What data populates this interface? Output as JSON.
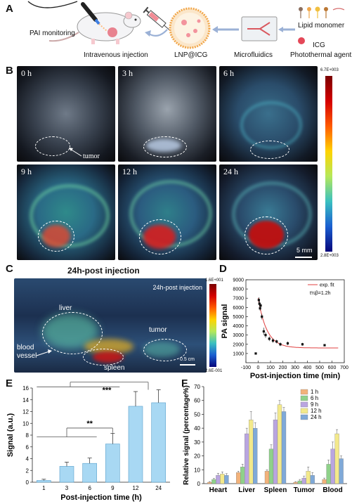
{
  "panel_labels": {
    "a": "A",
    "b": "B",
    "c": "C",
    "d": "D",
    "e": "E",
    "f": "F"
  },
  "schematic": {
    "pai_monitoring": "PAI monitoring",
    "intravenous_injection": "Intravenous injection",
    "lnp_icg": "LNP@ICG",
    "microfluidics": "Microfluidics",
    "lipid_monomer": "Lipid monomer",
    "icg": "ICG",
    "photothermal_agent": "Photothermal agent"
  },
  "panel_b": {
    "times": [
      "0 h",
      "3 h",
      "6 h",
      "9 h",
      "12 h",
      "24 h"
    ],
    "tumor_label": "tumor",
    "scale_bar": "5 mm",
    "colorbar_max": "6.7E+003",
    "colorbar_min": "2.8E+003"
  },
  "panel_c": {
    "title": "24h-post injection",
    "inner_title": "24h-post injection",
    "labels": {
      "liver": "liver",
      "tumor": "tumor",
      "blood_vessel_1": "blood",
      "blood_vessel_2": "vessel",
      "spleen": "spleen"
    },
    "scale_bar": "0.5 cm",
    "colorbar_max": "1.6E+001",
    "colorbar_min": "2.6E-001"
  },
  "chart_data": [
    {
      "type": "scatter",
      "panel": "D",
      "xlabel": "Post-injection time (min)",
      "ylabel": "PA signal",
      "xlim": [
        -100,
        700
      ],
      "ylim": [
        0,
        9000
      ],
      "xticks": [
        -100,
        0,
        100,
        200,
        300,
        400,
        500,
        600,
        700
      ],
      "yticks": [
        1000,
        2000,
        3000,
        4000,
        5000,
        6000,
        7000,
        8000,
        9000
      ],
      "legend": {
        "fit_label": "exp. fit",
        "half_life": "t½β=1.2h"
      },
      "points": [
        {
          "x": 5,
          "y": 6800,
          "err": 300
        },
        {
          "x": 10,
          "y": 6400,
          "err": 300
        },
        {
          "x": 15,
          "y": 5900,
          "err": 250
        },
        {
          "x": 20,
          "y": 6200,
          "err": 250
        },
        {
          "x": 30,
          "y": 5000,
          "err": 300
        },
        {
          "x": 45,
          "y": 3400,
          "err": 400
        },
        {
          "x": 60,
          "y": 3000,
          "err": 300
        },
        {
          "x": 90,
          "y": 2600,
          "err": 250
        },
        {
          "x": 120,
          "y": 2400,
          "err": 250
        },
        {
          "x": 150,
          "y": 2300,
          "err": 200
        },
        {
          "x": 180,
          "y": 2000,
          "err": 200
        },
        {
          "x": 240,
          "y": 2100,
          "err": 200
        },
        {
          "x": 360,
          "y": 2000,
          "err": 150
        },
        {
          "x": 540,
          "y": 1900,
          "err": 100
        },
        {
          "x": -20,
          "y": 1000,
          "err": 0
        }
      ],
      "fit": {
        "y0": 1600,
        "a": 5400,
        "tau_min": 70
      }
    },
    {
      "type": "bar",
      "panel": "E",
      "xlabel": "Post-injection time (h)",
      "ylabel": "Signal (a.u.)",
      "categories": [
        "1",
        "3",
        "6",
        "9",
        "12",
        "24"
      ],
      "values": [
        0.3,
        2.7,
        3.2,
        6.5,
        12.9,
        13.5
      ],
      "errors": [
        0.2,
        0.7,
        0.9,
        1.8,
        2.5,
        2.2
      ],
      "ylim": [
        0,
        16
      ],
      "yticks": [
        0,
        2,
        4,
        6,
        8,
        10,
        12,
        14,
        16
      ],
      "annotations": {
        "low": "**",
        "high": "***"
      }
    },
    {
      "type": "bar",
      "panel": "F",
      "ylabel": "Relative signal (percentage%)",
      "categories": [
        "Heart",
        "Liver",
        "Spleen",
        "Tumor",
        "Blood"
      ],
      "ylim": [
        0,
        70
      ],
      "yticks": [
        0,
        10,
        20,
        30,
        40,
        50,
        60,
        70
      ],
      "series": [
        {
          "name": "1 h",
          "color": "#f2b27a",
          "values": [
            1,
            8,
            9,
            1,
            3
          ],
          "errors": [
            0.5,
            1,
            1,
            0.5,
            1
          ]
        },
        {
          "name": "6 h",
          "color": "#8fd18a",
          "values": [
            3,
            12,
            25,
            2,
            14
          ],
          "errors": [
            0.8,
            2,
            3,
            1,
            3
          ]
        },
        {
          "name": "9 h",
          "color": "#b9a5e0",
          "values": [
            6,
            36,
            46,
            4,
            25
          ],
          "errors": [
            1.5,
            4,
            5,
            1.5,
            5
          ]
        },
        {
          "name": "12 h",
          "color": "#f3e98b",
          "values": [
            7,
            46,
            57,
            9,
            36
          ],
          "errors": [
            1.5,
            6,
            3,
            3,
            3
          ]
        },
        {
          "name": "24 h",
          "color": "#7fa9d8",
          "values": [
            6,
            40,
            52,
            6,
            18
          ],
          "errors": [
            1.2,
            4,
            3,
            2,
            2
          ]
        }
      ]
    }
  ]
}
